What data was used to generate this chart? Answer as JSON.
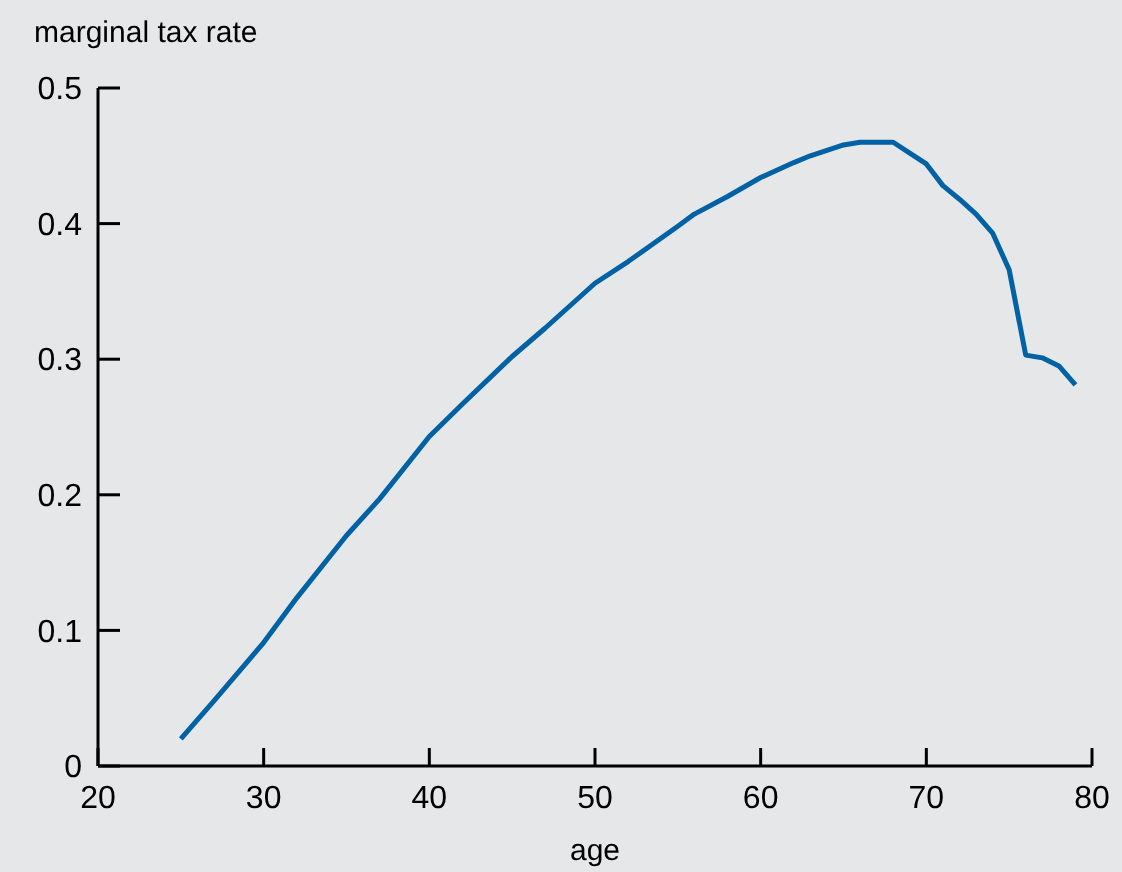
{
  "chart_data": {
    "type": "line",
    "ylabel": "marginal tax rate",
    "xlabel": "age",
    "x": [
      25,
      27,
      30,
      32,
      35,
      37,
      40,
      42,
      45,
      47,
      50,
      52,
      55,
      56,
      58,
      60,
      62,
      63,
      65,
      66,
      68,
      69,
      70,
      71,
      72,
      73,
      74,
      75,
      76,
      77,
      78,
      79
    ],
    "series": [
      {
        "color": "#0062a4",
        "values": [
          0.02,
          0.048,
          0.091,
          0.124,
          0.17,
          0.197,
          0.243,
          0.267,
          0.302,
          0.323,
          0.356,
          0.372,
          0.398,
          0.407,
          0.42,
          0.434,
          0.445,
          0.45,
          0.458,
          0.46,
          0.46,
          0.452,
          0.444,
          0.428,
          0.418,
          0.407,
          0.393,
          0.366,
          0.303,
          0.301,
          0.295,
          0.281
        ]
      }
    ],
    "xlim": [
      20,
      80
    ],
    "ylim": [
      0,
      0.5
    ],
    "xticks": [
      20,
      30,
      40,
      50,
      60,
      70,
      80
    ],
    "yticks": [
      0,
      0.1,
      0.2,
      0.3,
      0.4,
      0.5
    ],
    "grid": false,
    "marker": "none",
    "line_style": "solid"
  }
}
